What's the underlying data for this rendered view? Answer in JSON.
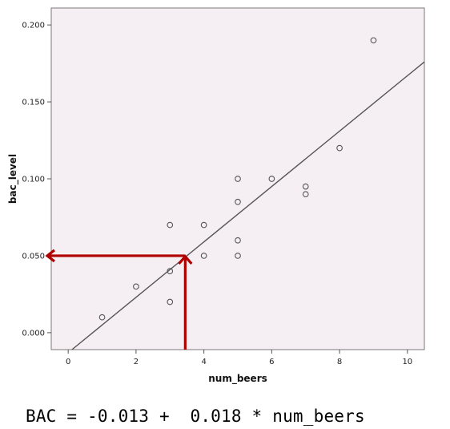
{
  "chart_data": {
    "type": "scatter",
    "xlabel": "num_beers",
    "ylabel": "bac_level",
    "xlim": [
      -0.5,
      10.5
    ],
    "ylim": [
      -0.011,
      0.211
    ],
    "x_ticks": [
      0,
      2,
      4,
      6,
      8,
      10
    ],
    "y_ticks": [
      0.0,
      0.05,
      0.1,
      0.15,
      0.2
    ],
    "y_tick_labels": [
      "0.000",
      "0.050",
      "0.100",
      "0.150",
      "0.200"
    ],
    "grid": false,
    "plot_background": "#f5eef3",
    "marker_color": "#555555",
    "points": [
      {
        "x": 1,
        "y": 0.01
      },
      {
        "x": 2,
        "y": 0.03
      },
      {
        "x": 3,
        "y": 0.02
      },
      {
        "x": 3,
        "y": 0.04
      },
      {
        "x": 3,
        "y": 0.07
      },
      {
        "x": 4,
        "y": 0.05
      },
      {
        "x": 4,
        "y": 0.07
      },
      {
        "x": 5,
        "y": 0.05
      },
      {
        "x": 5,
        "y": 0.06
      },
      {
        "x": 5,
        "y": 0.085
      },
      {
        "x": 5,
        "y": 0.1
      },
      {
        "x": 6,
        "y": 0.1
      },
      {
        "x": 7,
        "y": 0.09
      },
      {
        "x": 7,
        "y": 0.095
      },
      {
        "x": 8,
        "y": 0.12
      },
      {
        "x": 9,
        "y": 0.19
      }
    ],
    "fit_line": {
      "intercept": -0.013,
      "slope": 0.018,
      "color": "#555555"
    },
    "annotation": {
      "x": 3.45,
      "y": 0.05,
      "color": "#b00000",
      "description_arrows": [
        "up-from-x-axis",
        "left-to-y-axis"
      ]
    }
  },
  "equation": "BAC = -0.013 +  0.018 * num_beers"
}
